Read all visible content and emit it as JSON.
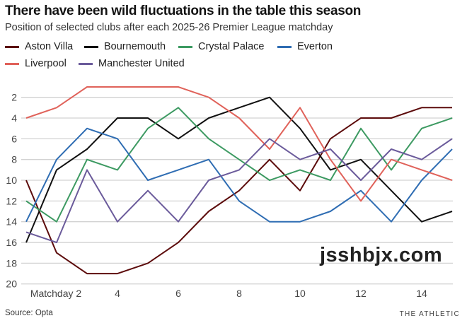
{
  "title": "There have been wild fluctuations in the table this season",
  "subtitle": "Position of selected clubs after each 2025-26 Premier League matchday",
  "source": "Source: Opta",
  "brand": "THE ATHLETIC",
  "watermark": "jsshbjx.com",
  "chart_data": {
    "type": "line",
    "x": [
      1,
      2,
      3,
      4,
      5,
      6,
      7,
      8,
      9,
      10,
      11,
      12,
      13,
      14,
      15
    ],
    "x_ticks": [
      2,
      4,
      6,
      8,
      10,
      12,
      14
    ],
    "x_tick_labels": [
      "Matchday 2",
      "4",
      "6",
      "8",
      "10",
      "12",
      "14"
    ],
    "y_ticks": [
      2,
      4,
      6,
      8,
      10,
      12,
      14,
      16,
      18,
      20
    ],
    "ylim": [
      1,
      20
    ],
    "y_inverted": true,
    "grid": "horizontal",
    "legend_placement": "top",
    "series": [
      {
        "name": "Aston Villa",
        "color": "#5c0b0b",
        "values": [
          10,
          17,
          19,
          19,
          18,
          16,
          13,
          11,
          8,
          11,
          6,
          4,
          4,
          3,
          3
        ]
      },
      {
        "name": "Bournemouth",
        "color": "#111111",
        "values": [
          16,
          9,
          7,
          4,
          4,
          6,
          4,
          3,
          2,
          5,
          9,
          8,
          11,
          14,
          13
        ]
      },
      {
        "name": "Crystal Palace",
        "color": "#3d9a62",
        "values": [
          12,
          14,
          8,
          9,
          5,
          3,
          6,
          8,
          10,
          9,
          10,
          5,
          9,
          5,
          4
        ]
      },
      {
        "name": "Everton",
        "color": "#2f6db3",
        "values": [
          14,
          8,
          5,
          6,
          10,
          9,
          8,
          12,
          14,
          14,
          13,
          11,
          14,
          10,
          7
        ]
      },
      {
        "name": "Liverpool",
        "color": "#e0625a",
        "values": [
          4,
          3,
          1,
          1,
          1,
          1,
          2,
          4,
          7,
          3,
          8,
          12,
          8,
          9,
          10
        ]
      },
      {
        "name": "Manchester United",
        "color": "#6b5b9b",
        "values": [
          15,
          16,
          9,
          14,
          11,
          14,
          10,
          9,
          6,
          8,
          7,
          10,
          7,
          8,
          6
        ]
      }
    ]
  }
}
